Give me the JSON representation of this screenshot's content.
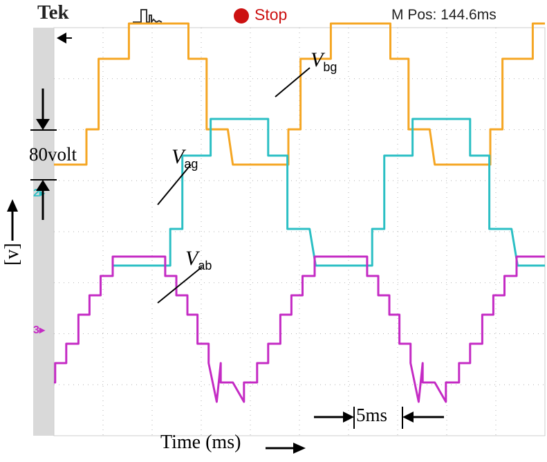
{
  "header": {
    "brand": "Tek",
    "run_state": "Stop",
    "position_readout": "M Pos: 144.6ms",
    "trigger_icon": "pulse-trigger-icon",
    "stop_color": "#cc1111"
  },
  "labels": {
    "vertical_scale": "80volt",
    "time_scale": "5ms",
    "xlabel": "Time (ms)",
    "ylabel": "[v]"
  },
  "chart_data": {
    "type": "line",
    "title": "",
    "xlabel": "Time (ms)",
    "ylabel": "[v]",
    "time_per_div_ms": 5,
    "volts_per_div": 80,
    "grid": true,
    "xlim_ms": [
      0,
      50
    ],
    "series": [
      {
        "name": "Vbg",
        "sub": "bg",
        "color": "#f5a623",
        "channel_marker": "",
        "levels": [
          -2,
          -1,
          1,
          2,
          1,
          -1
        ],
        "segments_ms": [
          {
            "t0": -3.1,
            "t1": 2.4,
            "level": -2
          },
          {
            "t0": 2.4,
            "t1": 3.6,
            "level": -1
          },
          {
            "t0": 3.6,
            "t1": 6.6,
            "level": 1
          },
          {
            "t0": 6.6,
            "t1": 12.5,
            "level": 2
          },
          {
            "t0": 12.5,
            "t1": 14.3,
            "level": 1
          },
          {
            "t0": 14.3,
            "t1": 16.4,
            "level": -1
          }
        ]
      },
      {
        "name": "Vag",
        "sub": "ag",
        "color": "#2bbfc4",
        "channel_marker": "2",
        "levels": [
          -2,
          -1,
          1,
          2,
          1,
          -1
        ],
        "segments_ms": [
          {
            "t0": 5.1,
            "t1": 10.7,
            "level": -2
          },
          {
            "t0": 10.7,
            "t1": 11.9,
            "level": -1
          },
          {
            "t0": 11.9,
            "t1": 14.7,
            "level": 1
          },
          {
            "t0": 14.7,
            "t1": 20.4,
            "level": 2
          },
          {
            "t0": 20.4,
            "t1": 22.3,
            "level": 1
          },
          {
            "t0": 22.3,
            "t1": 24.5,
            "level": -1
          }
        ]
      },
      {
        "name": "Vab",
        "sub": "ab",
        "color": "#c42bc4",
        "channel_marker": "3",
        "levels": [
          -3,
          -2.2,
          -1.4,
          -0.6,
          0.6,
          1.4,
          2.2,
          3,
          2.2,
          1.4,
          0.6,
          -0.6,
          -1.4,
          -2.2
        ],
        "segments_ms": [
          {
            "t0": -4.7,
            "t1": -2.0,
            "level": -3
          },
          {
            "t0": -2.0,
            "t1": -0.7,
            "level": -2.2
          },
          {
            "t0": -0.7,
            "t1": 0.4,
            "level": -1.4
          },
          {
            "t0": 0.4,
            "t1": 1.6,
            "level": -0.6
          },
          {
            "t0": 1.6,
            "t1": 2.7,
            "level": 0.6
          },
          {
            "t0": 2.7,
            "t1": 3.8,
            "level": 1.4
          },
          {
            "t0": 3.8,
            "t1": 5.0,
            "level": 2.2
          },
          {
            "t0": 5.0,
            "t1": 10.2,
            "level": 3
          },
          {
            "t0": 10.2,
            "t1": 11.3,
            "level": 2.2
          },
          {
            "t0": 11.3,
            "t1": 12.4,
            "level": 1.4
          },
          {
            "t0": 12.4,
            "t1": 13.4,
            "level": 0.6
          },
          {
            "t0": 13.4,
            "t1": 14.5,
            "level": -0.6
          },
          {
            "t0": 14.5,
            "t1": 15.7,
            "level": -1.4
          },
          {
            "t0": 15.7,
            "t1": 16.9,
            "level": -2.2
          }
        ]
      }
    ]
  }
}
